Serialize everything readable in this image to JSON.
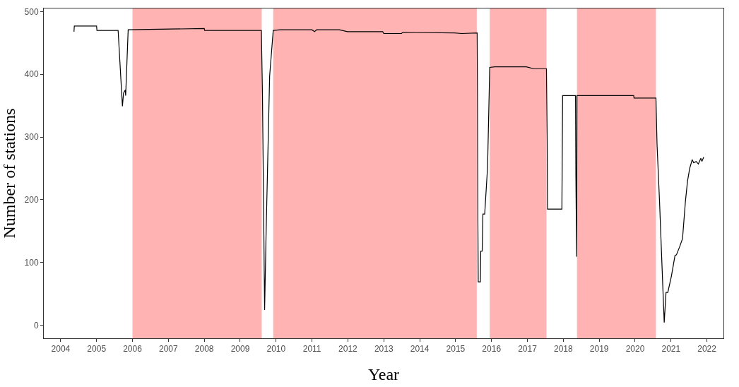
{
  "chart_data": {
    "type": "line",
    "xlabel": "Year",
    "ylabel": "Number of stations",
    "x": [
      2004.37,
      2004.38,
      2005.0,
      2005.01,
      2005.6,
      2005.72,
      2005.75,
      2005.8,
      2005.81,
      2005.88,
      2008.0,
      2008.01,
      2009.59,
      2009.62,
      2009.68,
      2009.72,
      2009.82,
      2009.92,
      2010.12,
      2011.0,
      2011.07,
      2011.13,
      2011.76,
      2011.99,
      2012.97,
      2013.0,
      2013.49,
      2013.53,
      2014.97,
      2015.17,
      2015.6,
      2015.61,
      2015.62,
      2015.63,
      2015.69,
      2015.7,
      2015.74,
      2015.76,
      2015.81,
      2015.89,
      2015.95,
      2016.09,
      2016.97,
      2017.17,
      2017.53,
      2017.55,
      2017.56,
      2017.96,
      2017.97,
      2017.98,
      2018.34,
      2018.35,
      2018.37,
      2018.38,
      2019.96,
      2019.97,
      2020.58,
      2020.61,
      2020.68,
      2020.74,
      2020.81,
      2020.86,
      2020.91,
      2021.01,
      2021.11,
      2021.15,
      2021.24,
      2021.32,
      2021.4,
      2021.46,
      2021.52,
      2021.59,
      2021.63,
      2021.7,
      2021.76,
      2021.83,
      2021.86,
      2021.91
    ],
    "series": [
      {
        "color": "#000000",
        "values": [
          468,
          477,
          477,
          470,
          470,
          349,
          370,
          375,
          366,
          471,
          473,
          470,
          470,
          368,
          24,
          143,
          397,
          470,
          471,
          471,
          468,
          471,
          471,
          468,
          468,
          465,
          465,
          467,
          466,
          465,
          466,
          368,
          168,
          69,
          69,
          118,
          118,
          177,
          177,
          252,
          411,
          412,
          412,
          409,
          409,
          297,
          185,
          185,
          274,
          366,
          366,
          237,
          109,
          366,
          366,
          362,
          362,
          288,
          197,
          107,
          4,
          52,
          52,
          78,
          111,
          112,
          125,
          138,
          197,
          230,
          250,
          264,
          259,
          261,
          257,
          266,
          261,
          268
        ]
      }
    ],
    "xlim": [
      2003.53,
      2022.46
    ],
    "ylim": [
      -21,
      505
    ],
    "xticks": [
      2004,
      2005,
      2006,
      2007,
      2008,
      2009,
      2010,
      2011,
      2012,
      2013,
      2014,
      2015,
      2016,
      2017,
      2018,
      2019,
      2020,
      2021,
      2022
    ],
    "yticks": [
      0,
      100,
      200,
      300,
      400,
      500
    ],
    "bands": [
      {
        "axis": "x",
        "from": 2006.0,
        "to": 2009.6,
        "color": "#ffb3b3"
      },
      {
        "axis": "x",
        "from": 2009.92,
        "to": 2015.59,
        "color": "#ffb3b3"
      },
      {
        "axis": "x",
        "from": 2015.95,
        "to": 2017.53,
        "color": "#ffb3b3"
      },
      {
        "axis": "x",
        "from": 2018.38,
        "to": 2020.58,
        "color": "#ffb3b3"
      }
    ],
    "grid": false,
    "marker": "none",
    "line_style": "solid"
  }
}
